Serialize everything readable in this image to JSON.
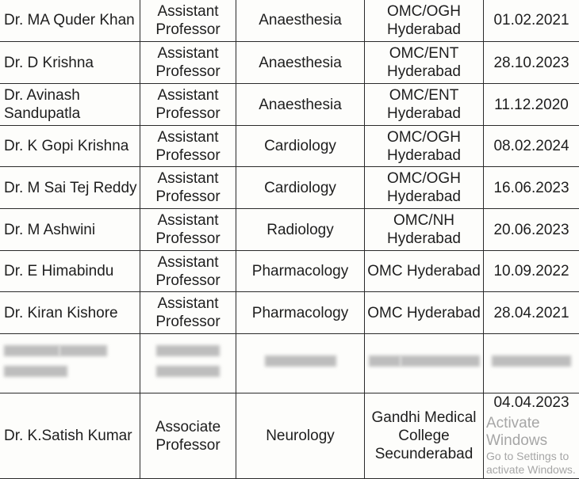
{
  "rows": [
    {
      "name": "Dr. MA Quder Khan",
      "designation": "Assistant Professor",
      "department": "Anaesthesia",
      "place": "OMC/OGH Hyderabad",
      "date": "01.02.2021"
    },
    {
      "name": "Dr. D Krishna",
      "designation": "Assistant Professor",
      "department": "Anaesthesia",
      "place": "OMC/ENT Hyderabad",
      "date": "28.10.2023"
    },
    {
      "name": "Dr. Avinash Sandupatla",
      "designation": "Assistant Professor",
      "department": "Anaesthesia",
      "place": "OMC/ENT Hyderabad",
      "date": "11.12.2020"
    },
    {
      "name": "Dr. K Gopi Krishna",
      "designation": "Assistant Professor",
      "department": "Cardiology",
      "place": "OMC/OGH Hyderabad",
      "date": "08.02.2024"
    },
    {
      "name": "Dr. M Sai Tej Reddy",
      "designation": "Assistant Professor",
      "department": "Cardiology",
      "place": "OMC/OGH Hyderabad",
      "date": "16.06.2023"
    },
    {
      "name": "Dr. M Ashwini",
      "designation": "Assistant Professor",
      "department": "Radiology",
      "place": "OMC/NH Hyderabad",
      "date": "20.06.2023"
    },
    {
      "name": "Dr. E Himabindu",
      "designation": "Assistant Professor",
      "department": "Pharmacology",
      "place": "OMC Hyderabad",
      "date": "10.09.2022"
    },
    {
      "name": "Dr. Kiran Kishore",
      "designation": "Assistant Professor",
      "department": "Pharmacology",
      "place": "OMC Hyderabad",
      "date": "28.04.2021"
    }
  ],
  "last_row": {
    "name": "Dr. K.Satish Kumar",
    "designation": "Associate Professor",
    "department": "Neurology",
    "place": "Gandhi Medical College Secunderabad",
    "date": "04.04.2023"
  },
  "watermark": {
    "line1": "Activate Windows",
    "line2": "Go to Settings to activate Windows."
  }
}
